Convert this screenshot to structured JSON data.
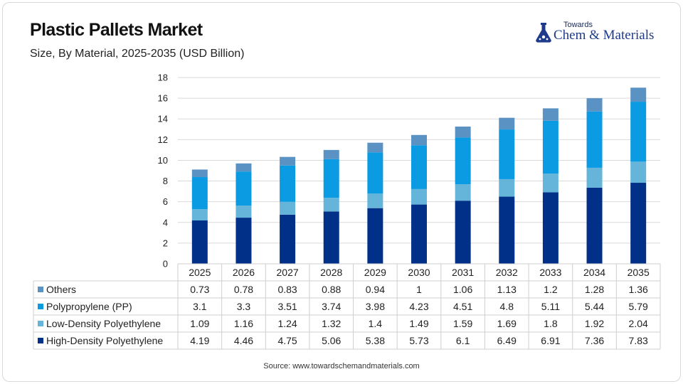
{
  "header": {
    "title": "Plastic Pallets Market",
    "subtitle": "Size, By Material, 2025-2035 (USD Billion)"
  },
  "logo": {
    "top": "Towards",
    "bottom": "Chem & Materials",
    "icon": "flask-icon",
    "color": "#1e3a8a"
  },
  "source": "Source: www.towardschemandmaterials.com",
  "chart_data": {
    "type": "bar",
    "stacked": true,
    "title": "Plastic Pallets Market",
    "subtitle": "Size, By Material, 2025-2035 (USD Billion)",
    "categories": [
      "2025",
      "2026",
      "2027",
      "2028",
      "2029",
      "2030",
      "2031",
      "2032",
      "2033",
      "2034",
      "2035"
    ],
    "ylim": [
      0,
      18
    ],
    "yticks": [
      0,
      2,
      4,
      6,
      8,
      10,
      12,
      14,
      16,
      18
    ],
    "grid": true,
    "legend": "data-table-left",
    "series": [
      {
        "name": "High-Density Polyethylene",
        "color": "#003087",
        "values": [
          4.19,
          4.46,
          4.75,
          5.06,
          5.38,
          5.73,
          6.1,
          6.49,
          6.91,
          7.36,
          7.83
        ]
      },
      {
        "name": "Low-Density Polyethylene",
        "color": "#64b5d9",
        "values": [
          1.09,
          1.16,
          1.24,
          1.32,
          1.4,
          1.49,
          1.59,
          1.69,
          1.8,
          1.92,
          2.04
        ]
      },
      {
        "name": "Polypropylene (PP)",
        "color": "#0b9be3",
        "values": [
          3.1,
          3.3,
          3.51,
          3.74,
          3.98,
          4.23,
          4.51,
          4.8,
          5.11,
          5.44,
          5.79
        ]
      },
      {
        "name": "Others",
        "color": "#5b92c4",
        "values": [
          0.73,
          0.78,
          0.83,
          0.88,
          0.94,
          1,
          1.06,
          1.13,
          1.2,
          1.28,
          1.36
        ]
      }
    ],
    "table_order": [
      "Others",
      "Polypropylene (PP)",
      "Low-Density Polyethylene",
      "High-Density Polyethylene"
    ]
  }
}
